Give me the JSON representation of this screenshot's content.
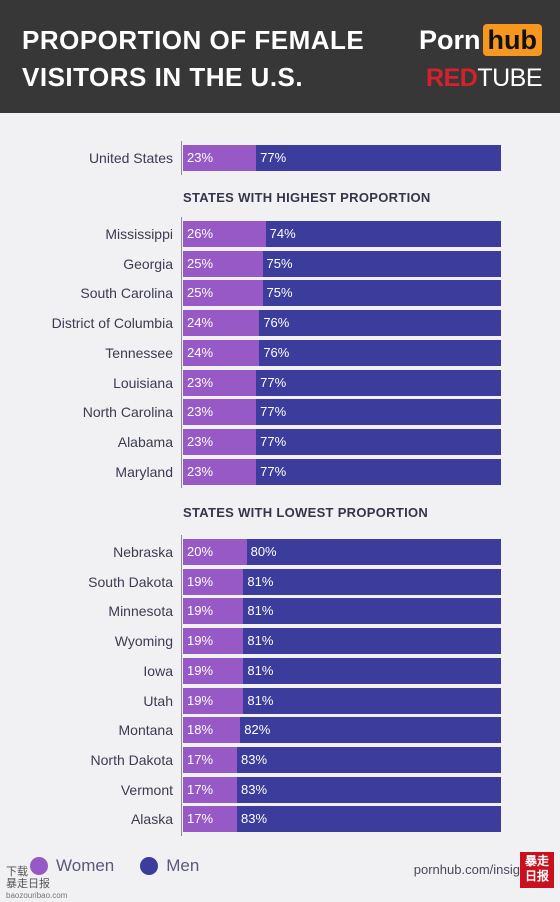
{
  "header": {
    "title": "PROPORTION OF FEMALE VISITORS IN THE U.S.",
    "logo_porn": "Porn",
    "logo_hub": "hub",
    "logo_red": "RED",
    "logo_tube": "TUBE"
  },
  "colors": {
    "women": "#9659c6",
    "men": "#3c3c9c",
    "header_bg": "#373737",
    "hub_orange": "#f7971d",
    "redtube_red": "#d3222b"
  },
  "legend": {
    "women": "Women",
    "men": "Men"
  },
  "source": "pornhub.com/insig",
  "watermark": {
    "badge": "暴走日报",
    "left_top": "下载",
    "left_main": "暴走日报",
    "left_small": "baozouribao.com"
  },
  "chart_data": {
    "type": "bar",
    "orientation": "horizontal",
    "stacked": true,
    "value_unit": "%",
    "series": [
      {
        "name": "Women",
        "color": "#9659c6"
      },
      {
        "name": "Men",
        "color": "#3c3c9c"
      }
    ],
    "groups": [
      {
        "heading": "",
        "rows": [
          {
            "category": "United States",
            "women": 23,
            "men": 77,
            "women_label": "23%",
            "men_label": "77%"
          }
        ]
      },
      {
        "heading": "STATES WITH HIGHEST PROPORTION",
        "rows": [
          {
            "category": "Mississippi",
            "women": 26,
            "men": 74,
            "women_label": "26%",
            "men_label": "74%"
          },
          {
            "category": "Georgia",
            "women": 25,
            "men": 75,
            "women_label": "25%",
            "men_label": "75%"
          },
          {
            "category": "South Carolina",
            "women": 25,
            "men": 75,
            "women_label": "25%",
            "men_label": "75%"
          },
          {
            "category": "District of Columbia",
            "women": 24,
            "men": 76,
            "women_label": "24%",
            "men_label": "76%"
          },
          {
            "category": "Tennessee",
            "women": 24,
            "men": 76,
            "women_label": "24%",
            "men_label": "76%"
          },
          {
            "category": "Louisiana",
            "women": 23,
            "men": 77,
            "women_label": "23%",
            "men_label": "77%"
          },
          {
            "category": "North Carolina",
            "women": 23,
            "men": 77,
            "women_label": "23%",
            "men_label": "77%"
          },
          {
            "category": "Alabama",
            "women": 23,
            "men": 77,
            "women_label": "23%",
            "men_label": "77%"
          },
          {
            "category": "Maryland",
            "women": 23,
            "men": 77,
            "women_label": "23%",
            "men_label": "77%"
          }
        ]
      },
      {
        "heading": "STATES WITH LOWEST PROPORTION",
        "rows": [
          {
            "category": "Nebraska",
            "women": 20,
            "men": 80,
            "women_label": "20%",
            "men_label": "80%"
          },
          {
            "category": "South Dakota",
            "women": 19,
            "men": 81,
            "women_label": "19%",
            "men_label": "81%"
          },
          {
            "category": "Minnesota",
            "women": 19,
            "men": 81,
            "women_label": "19%",
            "men_label": "81%"
          },
          {
            "category": "Wyoming",
            "women": 19,
            "men": 81,
            "women_label": "19%",
            "men_label": "81%"
          },
          {
            "category": "Iowa",
            "women": 19,
            "men": 81,
            "women_label": "19%",
            "men_label": "81%"
          },
          {
            "category": "Utah",
            "women": 19,
            "men": 81,
            "women_label": "19%",
            "men_label": "81%"
          },
          {
            "category": "Montana",
            "women": 18,
            "men": 82,
            "women_label": "18%",
            "men_label": "82%"
          },
          {
            "category": "North Dakota",
            "women": 17,
            "men": 83,
            "women_label": "17%",
            "men_label": "83%"
          },
          {
            "category": "Vermont",
            "women": 17,
            "men": 83,
            "women_label": "17%",
            "men_label": "83%"
          },
          {
            "category": "Alaska",
            "women": 17,
            "men": 83,
            "women_label": "17%",
            "men_label": "83%"
          }
        ]
      }
    ]
  }
}
